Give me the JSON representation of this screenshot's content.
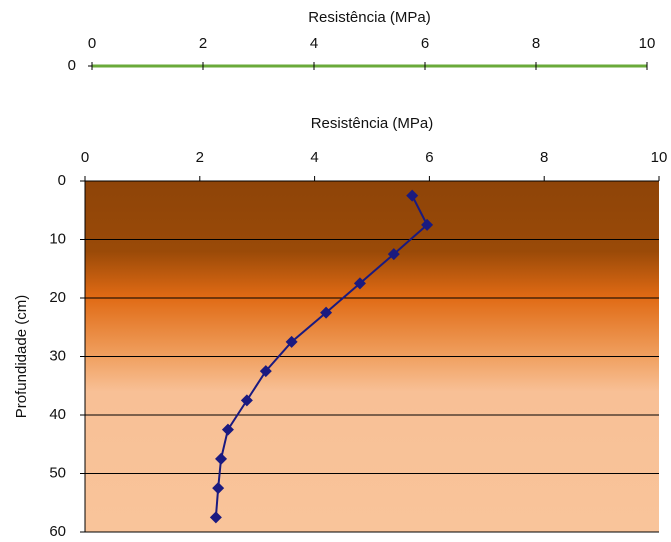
{
  "chart_data": [
    {
      "type": "line",
      "x_label": "Resistência (MPa)",
      "xlim": [
        0,
        10
      ],
      "xticks": [
        0,
        2,
        4,
        6,
        8,
        10
      ],
      "yticks": [
        0
      ],
      "axis_color": "#6aaa3a"
    },
    {
      "type": "line",
      "x_label": "Resistência (MPa)",
      "y_label": "Profundidade (cm)",
      "xlim": [
        0,
        10
      ],
      "xticks": [
        0,
        2,
        4,
        6,
        8,
        10
      ],
      "ylim": [
        0,
        60
      ],
      "yticks": [
        0,
        10,
        20,
        30,
        40,
        50,
        60
      ],
      "y_inverted": true,
      "grid": true,
      "color": "#1a1a80",
      "x": [
        5.7,
        5.96,
        5.38,
        4.79,
        4.2,
        3.6,
        3.15,
        2.82,
        2.49,
        2.37,
        2.32,
        2.28
      ],
      "values": [
        2.5,
        7.5,
        12.5,
        17.5,
        22.5,
        27.5,
        32.5,
        37.5,
        42.5,
        47.5,
        52.5,
        57.5
      ]
    }
  ]
}
